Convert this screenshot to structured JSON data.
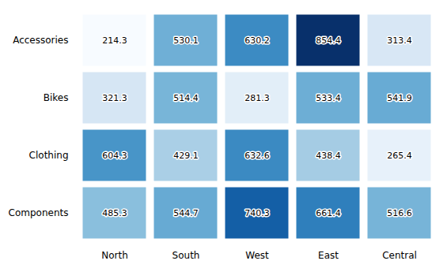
{
  "chart_data": {
    "type": "heatmap",
    "x": [
      "North",
      "South",
      "West",
      "East",
      "Central"
    ],
    "y": [
      "Accessories",
      "Bikes",
      "Clothing",
      "Components"
    ],
    "values": [
      [
        214.3,
        530.1,
        630.2,
        854.4,
        313.4
      ],
      [
        321.3,
        514.4,
        281.3,
        533.4,
        541.9
      ],
      [
        604.3,
        429.1,
        632.6,
        438.4,
        265.4
      ],
      [
        485.3,
        544.7,
        740.3,
        661.4,
        516.6
      ]
    ],
    "data_labels": true,
    "grid": false
  }
}
